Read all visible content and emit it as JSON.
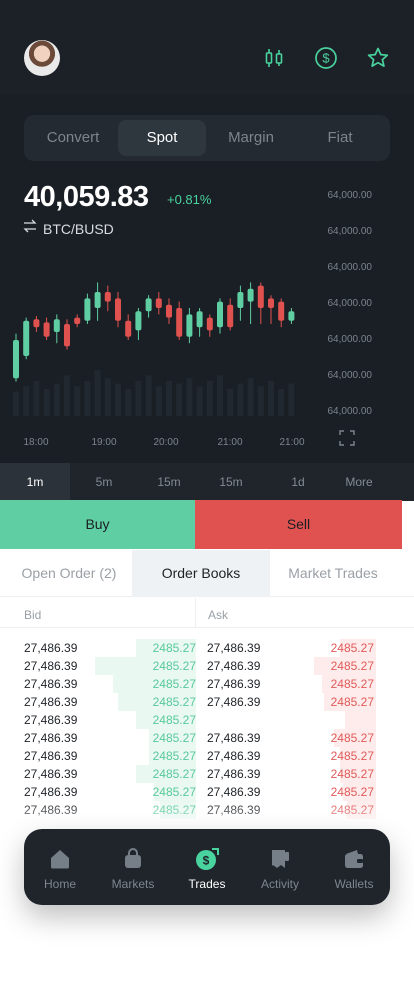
{
  "header": {
    "avatar_alt": "user avatar",
    "accent": "#49d39e"
  },
  "segments": [
    {
      "label": "Convert",
      "active": false
    },
    {
      "label": "Spot",
      "active": true
    },
    {
      "label": "Margin",
      "active": false
    },
    {
      "label": "Fiat",
      "active": false
    }
  ],
  "ticker": {
    "price": "40,059.83",
    "change": "+0.81%",
    "pair": "BTC/BUSD"
  },
  "chart_data": {
    "type": "candlestick",
    "y_tick_labels": [
      "64,000.00",
      "64,000.00",
      "64,000.00",
      "64,000.00",
      "64,000.00",
      "64,000.00",
      "64,000.00"
    ],
    "x_tick_labels": [
      "18:00",
      "19:00",
      "20:00",
      "21:00",
      "21:00"
    ],
    "colors": {
      "up": "#5fcea2",
      "down": "#e0524f"
    },
    "candles": [
      {
        "o": 26,
        "c": 50,
        "h": 54,
        "l": 24,
        "d": "up"
      },
      {
        "o": 40,
        "c": 62,
        "h": 64,
        "l": 38,
        "d": "up"
      },
      {
        "o": 63,
        "c": 58,
        "h": 65,
        "l": 55,
        "d": "down"
      },
      {
        "o": 61,
        "c": 52,
        "h": 64,
        "l": 50,
        "d": "down"
      },
      {
        "o": 55,
        "c": 63,
        "h": 66,
        "l": 48,
        "d": "up"
      },
      {
        "o": 60,
        "c": 46,
        "h": 63,
        "l": 44,
        "d": "down"
      },
      {
        "o": 64,
        "c": 60,
        "h": 66,
        "l": 58,
        "d": "down"
      },
      {
        "o": 62,
        "c": 76,
        "h": 79,
        "l": 60,
        "d": "up"
      },
      {
        "o": 70,
        "c": 80,
        "h": 86,
        "l": 62,
        "d": "up"
      },
      {
        "o": 80,
        "c": 74,
        "h": 84,
        "l": 68,
        "d": "down"
      },
      {
        "o": 76,
        "c": 62,
        "h": 80,
        "l": 58,
        "d": "down"
      },
      {
        "o": 62,
        "c": 52,
        "h": 66,
        "l": 50,
        "d": "down"
      },
      {
        "o": 56,
        "c": 68,
        "h": 70,
        "l": 50,
        "d": "up"
      },
      {
        "o": 68,
        "c": 76,
        "h": 78,
        "l": 64,
        "d": "up"
      },
      {
        "o": 76,
        "c": 70,
        "h": 80,
        "l": 66,
        "d": "down"
      },
      {
        "o": 72,
        "c": 64,
        "h": 76,
        "l": 60,
        "d": "down"
      },
      {
        "o": 70,
        "c": 52,
        "h": 74,
        "l": 50,
        "d": "down"
      },
      {
        "o": 52,
        "c": 66,
        "h": 70,
        "l": 48,
        "d": "up"
      },
      {
        "o": 58,
        "c": 68,
        "h": 70,
        "l": 52,
        "d": "up"
      },
      {
        "o": 64,
        "c": 56,
        "h": 66,
        "l": 52,
        "d": "down"
      },
      {
        "o": 58,
        "c": 74,
        "h": 76,
        "l": 54,
        "d": "up"
      },
      {
        "o": 72,
        "c": 58,
        "h": 76,
        "l": 56,
        "d": "down"
      },
      {
        "o": 70,
        "c": 80,
        "h": 84,
        "l": 62,
        "d": "up"
      },
      {
        "o": 74,
        "c": 82,
        "h": 86,
        "l": 60,
        "d": "up"
      },
      {
        "o": 84,
        "c": 70,
        "h": 86,
        "l": 60,
        "d": "down"
      },
      {
        "o": 76,
        "c": 70,
        "h": 78,
        "l": 60,
        "d": "down"
      },
      {
        "o": 74,
        "c": 62,
        "h": 76,
        "l": 58,
        "d": "down"
      },
      {
        "o": 62,
        "c": 68,
        "h": 70,
        "l": 60,
        "d": "up"
      }
    ],
    "volume": [
      18,
      22,
      26,
      20,
      24,
      30,
      22,
      26,
      34,
      28,
      24,
      20,
      26,
      30,
      22,
      26,
      24,
      28,
      22,
      26,
      30,
      20,
      24,
      28,
      22,
      26,
      20,
      24
    ]
  },
  "timeframes": [
    {
      "label": "1m",
      "active": true
    },
    {
      "label": "5m",
      "active": false
    },
    {
      "label": "15m",
      "active": false
    },
    {
      "label": "15m",
      "active": false
    },
    {
      "label": "1d",
      "active": false
    },
    {
      "label": "More",
      "active": false
    }
  ],
  "actions": {
    "buy": "Buy",
    "sell": "Sell"
  },
  "book_tabs": [
    {
      "label": "Open Order (2)",
      "active": false
    },
    {
      "label": "Order Books",
      "active": true
    },
    {
      "label": "Market Trades",
      "active": false
    }
  ],
  "book": {
    "bid_header": "Bid",
    "ask_header": "Ask",
    "rows": [
      {
        "bid_price": "27,486.39",
        "bid_vol": "2485.27",
        "bid_depth": 0.58,
        "ask_price": "27,486.39",
        "ask_vol": "2485.27",
        "ask_depth": 0.35
      },
      {
        "bid_price": "27,486.39",
        "bid_vol": "2485.27",
        "bid_depth": 0.97,
        "ask_price": "27,486.39",
        "ask_vol": "2485.27",
        "ask_depth": 0.6
      },
      {
        "bid_price": "27,486.39",
        "bid_vol": "2485.27",
        "bid_depth": 0.8,
        "ask_price": "27,486.39",
        "ask_vol": "2485.27",
        "ask_depth": 0.52
      },
      {
        "bid_price": "27,486.39",
        "bid_vol": "2485.27",
        "bid_depth": 0.75,
        "ask_price": "27,486.39",
        "ask_vol": "2485.27",
        "ask_depth": 0.5
      },
      {
        "bid_price": "27,486.39",
        "bid_vol": "2485.27",
        "bid_depth": 0.58,
        "ask_price": "",
        "ask_vol": "",
        "ask_depth": 0.3
      },
      {
        "bid_price": "27,486.39",
        "bid_vol": "2485.27",
        "bid_depth": 0.45,
        "ask_price": "27,486.39",
        "ask_vol": "2485.27",
        "ask_depth": 0.4
      },
      {
        "bid_price": "27,486.39",
        "bid_vol": "2485.27",
        "bid_depth": 0.45,
        "ask_price": "27,486.39",
        "ask_vol": "2485.27",
        "ask_depth": 0.35
      },
      {
        "bid_price": "27,486.39",
        "bid_vol": "2485.27",
        "bid_depth": 0.58,
        "ask_price": "27,486.39",
        "ask_vol": "2485.27",
        "ask_depth": 0.35
      },
      {
        "bid_price": "27,486.39",
        "bid_vol": "2485.27",
        "bid_depth": 0.4,
        "ask_price": "27,486.39",
        "ask_vol": "2485.27",
        "ask_depth": 0.32
      },
      {
        "bid_price": "27,486.39",
        "bid_vol": "2485.27",
        "bid_depth": 0.35,
        "ask_price": "27,486.39",
        "ask_vol": "2485.27",
        "ask_depth": 0.28
      }
    ]
  },
  "nav": [
    {
      "label": "Home",
      "icon": "home-icon",
      "active": false
    },
    {
      "label": "Markets",
      "icon": "bag-icon",
      "active": false
    },
    {
      "label": "Trades",
      "icon": "dollar-trade-icon",
      "active": true
    },
    {
      "label": "Activity",
      "icon": "activity-icon",
      "active": false
    },
    {
      "label": "Wallets",
      "icon": "wallet-icon",
      "active": false
    }
  ]
}
